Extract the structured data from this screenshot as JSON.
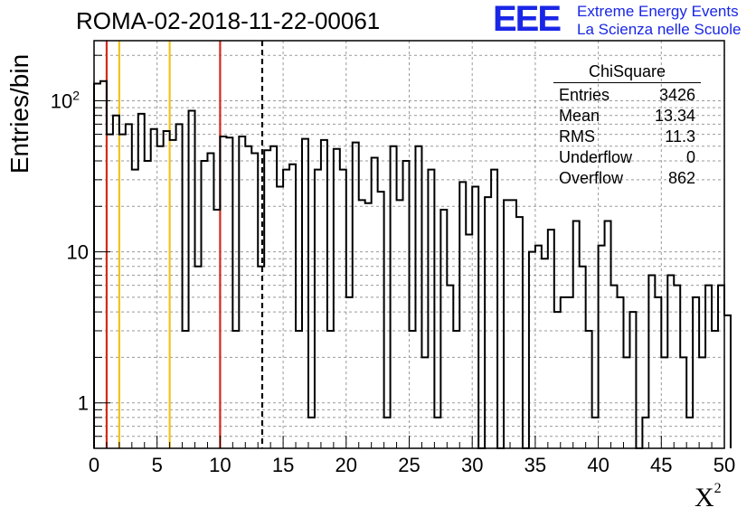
{
  "title": "ROMA-02-2018-11-22-00061",
  "logo": {
    "acronym": "EEE",
    "line1": "Extreme Energy Events",
    "line2": "La Scienza nelle Scuole",
    "color": "#1a26e6"
  },
  "stats_box": {
    "title": "ChiSquare",
    "rows": [
      {
        "label": "Entries",
        "value": "3426"
      },
      {
        "label": "Mean",
        "value": "13.34"
      },
      {
        "label": "RMS",
        "value": "11.3"
      },
      {
        "label": "Underflow",
        "value": "0"
      },
      {
        "label": "Overflow",
        "value": "862"
      }
    ]
  },
  "chart_data": {
    "type": "histogram",
    "title": "ROMA-02-2018-11-22-00061",
    "xlabel": "X",
    "xlabel_superscript": "2",
    "ylabel": "Entries/bin",
    "xlim": [
      0,
      50
    ],
    "ylim": [
      0.5,
      250
    ],
    "yscale": "log",
    "grid": true,
    "bin_width": 0.5,
    "xticks": [
      0,
      5,
      10,
      15,
      20,
      25,
      30,
      35,
      40,
      45,
      50
    ],
    "yticks": [
      {
        "value": 1,
        "label": "1"
      },
      {
        "value": 10,
        "label": "10"
      },
      {
        "value": 100,
        "label": "10",
        "exp": "2"
      }
    ],
    "values": [
      130,
      135,
      60,
      80,
      60,
      70,
      35,
      82,
      40,
      65,
      50,
      63,
      55,
      70,
      3,
      86,
      8,
      40,
      45,
      19,
      58,
      57,
      3,
      58,
      50,
      45,
      8,
      47,
      50,
      27,
      35,
      38,
      3,
      56,
      0.8,
      35,
      55,
      3,
      48,
      35,
      5,
      53,
      22,
      21,
      42,
      25,
      0.8,
      50,
      22,
      40,
      3,
      50,
      2,
      35,
      0.8,
      19,
      6,
      3,
      29,
      13,
      27,
      0,
      23,
      35,
      0,
      22,
      22,
      17,
      0,
      10,
      11,
      9,
      14,
      4,
      5,
      5,
      16,
      8,
      3,
      0.8,
      11,
      16,
      6,
      5,
      2,
      4,
      0,
      0.8,
      7,
      5,
      2,
      7,
      6,
      2,
      0.8,
      5,
      2,
      6,
      3,
      6,
      3.8
    ],
    "reference_lines": [
      {
        "x": 1,
        "color": "#d42a1a",
        "style": "solid"
      },
      {
        "x": 2,
        "color": "#f2c31a",
        "style": "solid"
      },
      {
        "x": 6,
        "color": "#f2c31a",
        "style": "solid"
      },
      {
        "x": 10,
        "color": "#d42a1a",
        "style": "solid"
      },
      {
        "x": 13.34,
        "color": "#000000",
        "style": "dashed"
      }
    ]
  }
}
